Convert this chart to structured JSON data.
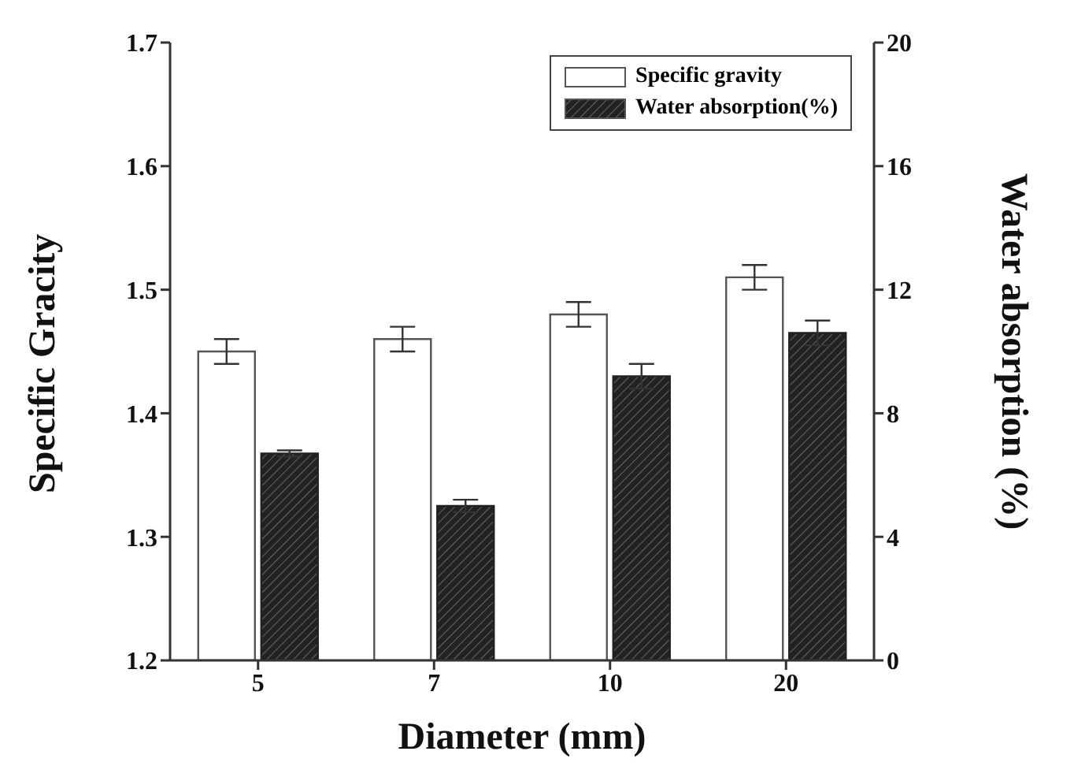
{
  "chart_data": {
    "type": "bar",
    "xlabel": "Diameter (mm)",
    "ylabel": "Specific Gracity",
    "y2label": "Water absorption (%)",
    "categories": [
      "5",
      "7",
      "10",
      "20"
    ],
    "series": [
      {
        "name": "Specific gravity",
        "color": "#ffffff",
        "values": [
          1.45,
          1.46,
          1.48,
          1.51
        ],
        "errors": [
          0.01,
          0.01,
          0.01,
          0.01
        ]
      },
      {
        "name": "Water absorption(%)",
        "color": "#222222",
        "values": [
          6.7,
          5.0,
          9.2,
          10.6
        ],
        "errors": [
          0.1,
          0.2,
          0.4,
          0.4
        ],
        "axis": "y2"
      }
    ],
    "ylim": [
      1.2,
      1.7
    ],
    "yticks": [
      1.2,
      1.3,
      1.4,
      1.5,
      1.6,
      1.7
    ],
    "y2lim": [
      0,
      20
    ],
    "y2ticks": [
      0,
      4,
      8,
      12,
      16,
      20
    ],
    "grid": false,
    "legend": "top right"
  }
}
